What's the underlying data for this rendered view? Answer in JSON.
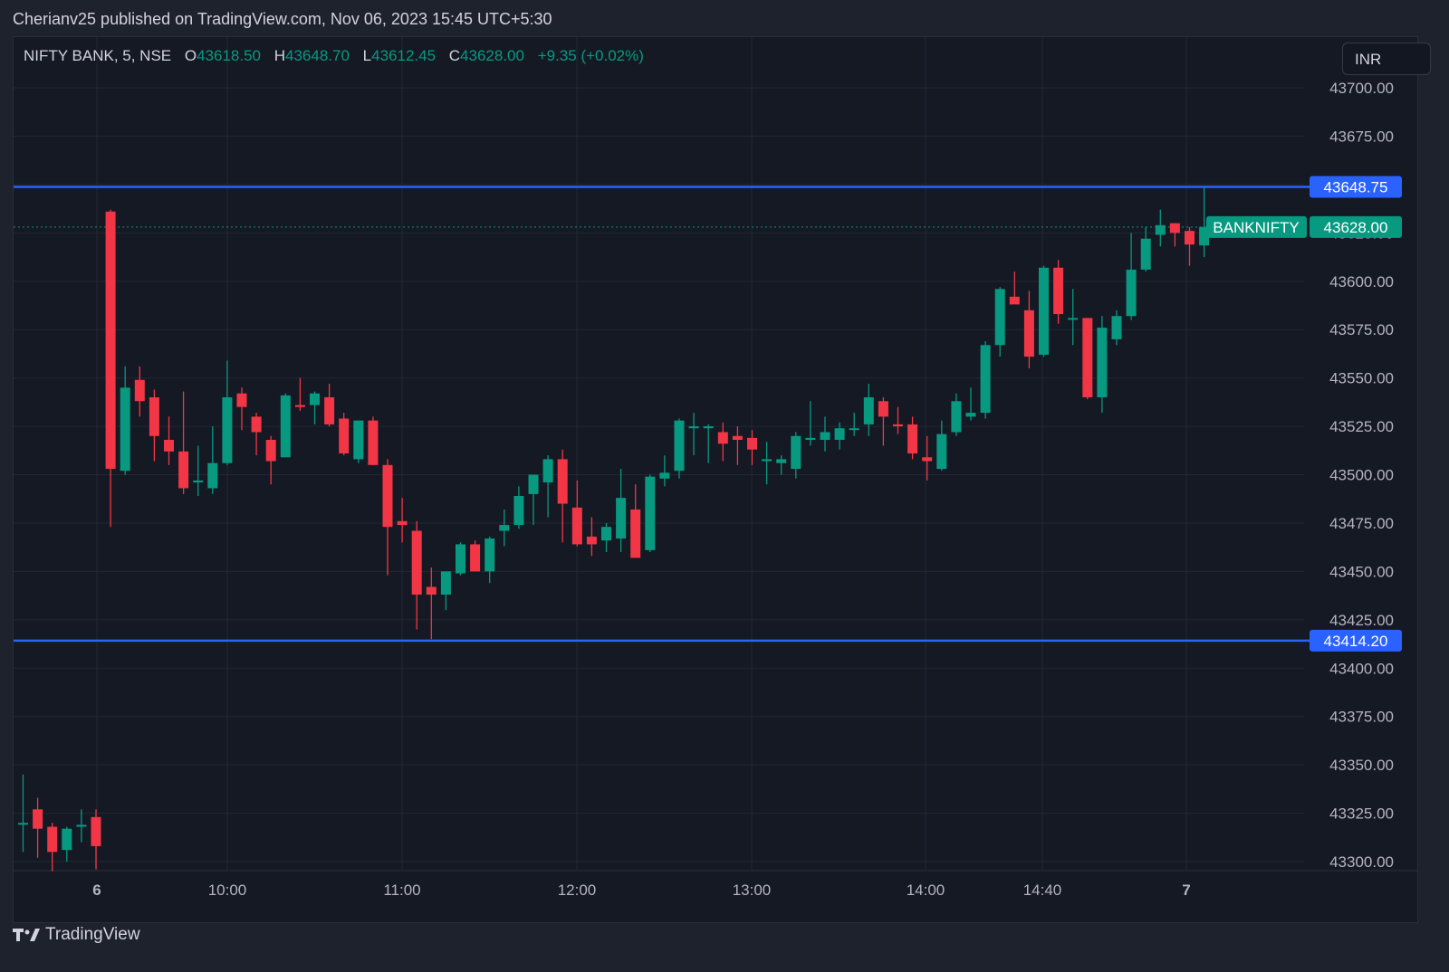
{
  "header": {
    "published_line": "Cherianv25 published on TradingView.com, Nov 06, 2023 15:45 UTC+5:30"
  },
  "legend": {
    "symbol": "NIFTY BANK, 5, NSE",
    "open_label": "O",
    "open": "43618.50",
    "high_label": "H",
    "high": "43648.70",
    "low_label": "L",
    "low": "43612.45",
    "close_label": "C",
    "close": "43628.00",
    "change": "+9.35 (+0.02%)"
  },
  "currency": "INR",
  "footer": {
    "brand": "TradingView",
    "logo_icon": "tradingview-logo-icon"
  },
  "colors": {
    "up": "#089981",
    "down": "#f23645",
    "level_line": "#2962ff",
    "background": "#151924",
    "grid": "#232733",
    "axis_text": "#b2b5be"
  },
  "chart_data": {
    "type": "candlestick",
    "ylim": [
      43290,
      43715
    ],
    "y_ticks": [
      "43700.00",
      "43675.00",
      "43650.00",
      "43625.00",
      "43600.00",
      "43575.00",
      "43550.00",
      "43525.00",
      "43500.00",
      "43475.00",
      "43450.00",
      "43425.00",
      "43400.00",
      "43375.00",
      "43350.00",
      "43325.00",
      "43300.00"
    ],
    "x_ticks": [
      "6",
      "10:00",
      "11:00",
      "12:00",
      "13:00",
      "14:00",
      "14:40",
      "7"
    ],
    "horizontal_lines": [
      {
        "value": 43648.75,
        "label": "43648.75"
      },
      {
        "value": 43414.2,
        "label": "43414.20"
      }
    ],
    "last_price": {
      "value": 43628.0,
      "label": "43628.00",
      "symbol": "BANKNIFTY"
    },
    "candles": [
      {
        "o": 43320,
        "h": 43345,
        "l": 43305,
        "c": 43320
      },
      {
        "o": 43327,
        "h": 43333,
        "l": 43302,
        "c": 43317
      },
      {
        "o": 43318,
        "h": 43320,
        "l": 43295,
        "c": 43305
      },
      {
        "o": 43306,
        "h": 43318,
        "l": 43300,
        "c": 43317
      },
      {
        "o": 43318,
        "h": 43327,
        "l": 43310,
        "c": 43319
      },
      {
        "o": 43323,
        "h": 43327,
        "l": 43296,
        "c": 43308
      },
      {
        "o": 43636,
        "h": 43637,
        "l": 43473,
        "c": 43503
      },
      {
        "o": 43502,
        "h": 43556,
        "l": 43500,
        "c": 43545
      },
      {
        "o": 43549,
        "h": 43556,
        "l": 43530,
        "c": 43538
      },
      {
        "o": 43540,
        "h": 43544,
        "l": 43507,
        "c": 43520
      },
      {
        "o": 43518,
        "h": 43530,
        "l": 43505,
        "c": 43512
      },
      {
        "o": 43512,
        "h": 43543,
        "l": 43490,
        "c": 43493
      },
      {
        "o": 43496,
        "h": 43515,
        "l": 43489,
        "c": 43497
      },
      {
        "o": 43493,
        "h": 43525,
        "l": 43490,
        "c": 43506
      },
      {
        "o": 43506,
        "h": 43559,
        "l": 43505,
        "c": 43540
      },
      {
        "o": 43542,
        "h": 43545,
        "l": 43523,
        "c": 43535
      },
      {
        "o": 43530,
        "h": 43532,
        "l": 43510,
        "c": 43522
      },
      {
        "o": 43518,
        "h": 43520,
        "l": 43495,
        "c": 43507
      },
      {
        "o": 43509,
        "h": 43542,
        "l": 43509,
        "c": 43541
      },
      {
        "o": 43536,
        "h": 43550,
        "l": 43533,
        "c": 43535
      },
      {
        "o": 43536,
        "h": 43543,
        "l": 43526,
        "c": 43542
      },
      {
        "o": 43540,
        "h": 43547,
        "l": 43525,
        "c": 43526
      },
      {
        "o": 43529,
        "h": 43532,
        "l": 43510,
        "c": 43511
      },
      {
        "o": 43508,
        "h": 43528,
        "l": 43506,
        "c": 43528
      },
      {
        "o": 43528,
        "h": 43530,
        "l": 43505,
        "c": 43505
      },
      {
        "o": 43505,
        "h": 43508,
        "l": 43448,
        "c": 43473
      },
      {
        "o": 43476,
        "h": 43488,
        "l": 43465,
        "c": 43474
      },
      {
        "o": 43471,
        "h": 43476,
        "l": 43420,
        "c": 43438
      },
      {
        "o": 43442,
        "h": 43452,
        "l": 43415,
        "c": 43438
      },
      {
        "o": 43438,
        "h": 43448,
        "l": 43430,
        "c": 43450
      },
      {
        "o": 43449,
        "h": 43465,
        "l": 43448,
        "c": 43464
      },
      {
        "o": 43464,
        "h": 43466,
        "l": 43450,
        "c": 43450
      },
      {
        "o": 43450,
        "h": 43468,
        "l": 43444,
        "c": 43467
      },
      {
        "o": 43471,
        "h": 43482,
        "l": 43463,
        "c": 43474
      },
      {
        "o": 43474,
        "h": 43494,
        "l": 43472,
        "c": 43489
      },
      {
        "o": 43490,
        "h": 43500,
        "l": 43474,
        "c": 43500
      },
      {
        "o": 43496,
        "h": 43510,
        "l": 43478,
        "c": 43508
      },
      {
        "o": 43508,
        "h": 43513,
        "l": 43465,
        "c": 43485
      },
      {
        "o": 43483,
        "h": 43497,
        "l": 43463,
        "c": 43464
      },
      {
        "o": 43468,
        "h": 43478,
        "l": 43458,
        "c": 43464
      },
      {
        "o": 43466,
        "h": 43475,
        "l": 43460,
        "c": 43473
      },
      {
        "o": 43467,
        "h": 43503,
        "l": 43460,
        "c": 43488
      },
      {
        "o": 43482,
        "h": 43495,
        "l": 43458,
        "c": 43457
      },
      {
        "o": 43461,
        "h": 43500,
        "l": 43460,
        "c": 43499
      },
      {
        "o": 43498,
        "h": 43510,
        "l": 43494,
        "c": 43501
      },
      {
        "o": 43502,
        "h": 43529,
        "l": 43498,
        "c": 43528
      },
      {
        "o": 43524,
        "h": 43532,
        "l": 43510,
        "c": 43525
      },
      {
        "o": 43524,
        "h": 43526,
        "l": 43506,
        "c": 43525
      },
      {
        "o": 43522,
        "h": 43527,
        "l": 43507,
        "c": 43516
      },
      {
        "o": 43520,
        "h": 43525,
        "l": 43505,
        "c": 43518
      },
      {
        "o": 43519,
        "h": 43523,
        "l": 43505,
        "c": 43513
      },
      {
        "o": 43507,
        "h": 43517,
        "l": 43495,
        "c": 43508
      },
      {
        "o": 43506,
        "h": 43510,
        "l": 43500,
        "c": 43508
      },
      {
        "o": 43503,
        "h": 43522,
        "l": 43498,
        "c": 43520
      },
      {
        "o": 43518,
        "h": 43538,
        "l": 43515,
        "c": 43519
      },
      {
        "o": 43518,
        "h": 43530,
        "l": 43512,
        "c": 43522
      },
      {
        "o": 43518,
        "h": 43527,
        "l": 43513,
        "c": 43524
      },
      {
        "o": 43524,
        "h": 43532,
        "l": 43520,
        "c": 43524
      },
      {
        "o": 43526,
        "h": 43547,
        "l": 43520,
        "c": 43540
      },
      {
        "o": 43538,
        "h": 43540,
        "l": 43515,
        "c": 43530
      },
      {
        "o": 43526,
        "h": 43535,
        "l": 43521,
        "c": 43525
      },
      {
        "o": 43526,
        "h": 43530,
        "l": 43508,
        "c": 43511
      },
      {
        "o": 43509,
        "h": 43520,
        "l": 43497,
        "c": 43507
      },
      {
        "o": 43503,
        "h": 43528,
        "l": 43502,
        "c": 43521
      },
      {
        "o": 43522,
        "h": 43542,
        "l": 43520,
        "c": 43538
      },
      {
        "o": 43530,
        "h": 43545,
        "l": 43528,
        "c": 43532
      },
      {
        "o": 43532,
        "h": 43569,
        "l": 43529,
        "c": 43567
      },
      {
        "o": 43567,
        "h": 43597,
        "l": 43561,
        "c": 43596
      },
      {
        "o": 43592,
        "h": 43605,
        "l": 43589,
        "c": 43588
      },
      {
        "o": 43585,
        "h": 43595,
        "l": 43555,
        "c": 43561
      },
      {
        "o": 43562,
        "h": 43608,
        "l": 43561,
        "c": 43607
      },
      {
        "o": 43607,
        "h": 43611,
        "l": 43578,
        "c": 43583
      },
      {
        "o": 43581,
        "h": 43596,
        "l": 43567,
        "c": 43581
      },
      {
        "o": 43581,
        "h": 43580,
        "l": 43539,
        "c": 43540
      },
      {
        "o": 43540,
        "h": 43582,
        "l": 43532,
        "c": 43576
      },
      {
        "o": 43570,
        "h": 43585,
        "l": 43567,
        "c": 43582
      },
      {
        "o": 43582,
        "h": 43625,
        "l": 43580,
        "c": 43606
      },
      {
        "o": 43606,
        "h": 43628,
        "l": 43605,
        "c": 43622
      },
      {
        "o": 43624,
        "h": 43637,
        "l": 43618,
        "c": 43629
      },
      {
        "o": 43630,
        "h": 43630,
        "l": 43618,
        "c": 43625
      },
      {
        "o": 43626,
        "h": 43628,
        "l": 43608,
        "c": 43619
      },
      {
        "o": 43618.5,
        "h": 43648.7,
        "l": 43612.45,
        "c": 43628
      }
    ]
  }
}
